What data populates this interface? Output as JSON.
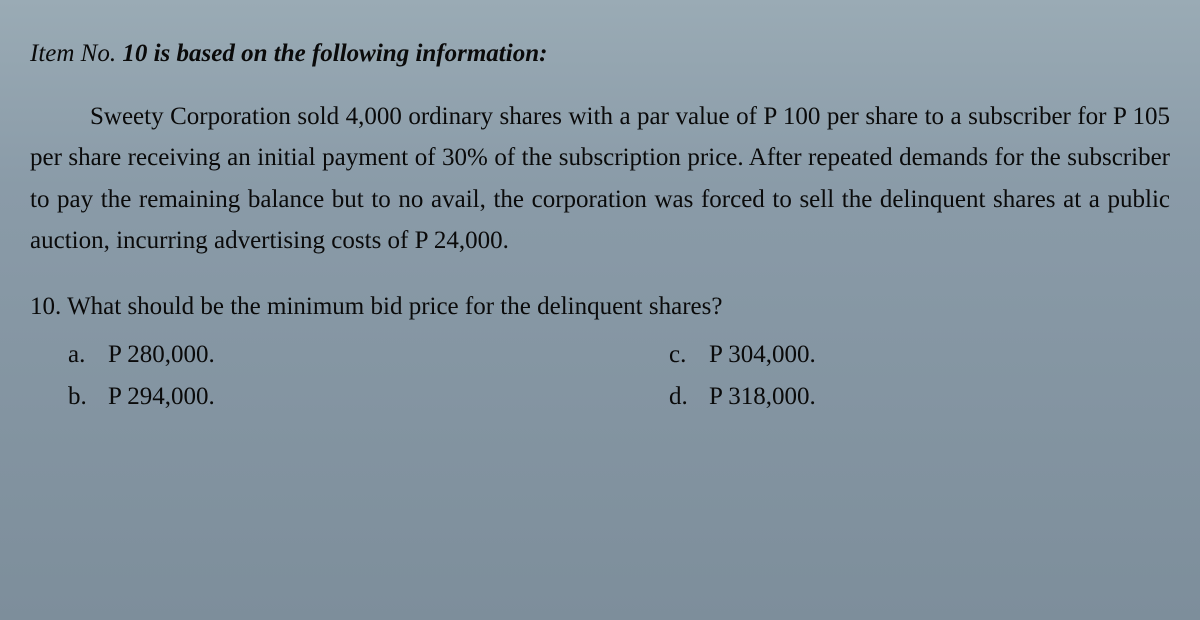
{
  "header": {
    "prefix": "Item No. ",
    "number": "10",
    "suffix": " is based on the following information:"
  },
  "paragraph": "Sweety Corporation sold 4,000 ordinary shares with a par value of P 100 per share to a subscriber for P 105 per share receiving an initial payment of 30% of the subscription price. After repeated demands for the subscriber to pay the remaining balance but to no avail, the corporation was forced to sell the delinquent shares at a public auction, incurring advertising costs of P 24,000.",
  "question": {
    "number": "10.",
    "text": "What should be the minimum bid price for the delinquent shares?"
  },
  "options": {
    "a": {
      "letter": "a.",
      "value": "P 280,000."
    },
    "b": {
      "letter": "b.",
      "value": "P 294,000."
    },
    "c": {
      "letter": "c.",
      "value": "P 304,000."
    },
    "d": {
      "letter": "d.",
      "value": "P 318,000."
    }
  },
  "colors": {
    "background": "#8a9ba8",
    "text": "#0a0a0a"
  }
}
